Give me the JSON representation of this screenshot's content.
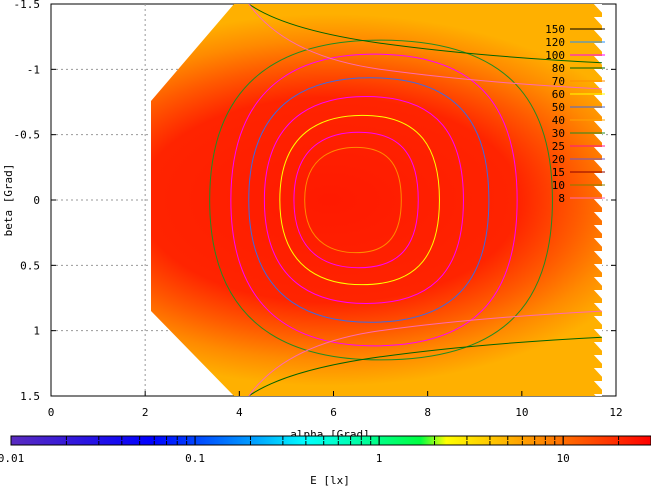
{
  "chart_data": {
    "type": "heatmap",
    "title": "",
    "xlabel": "alpha [Grad]",
    "ylabel": "beta [Grad]",
    "xlim": [
      0,
      12
    ],
    "ylim": [
      -1.5,
      1.5
    ],
    "x_ticks": [
      0,
      2,
      4,
      6,
      8,
      10,
      12
    ],
    "y_ticks": [
      -1.5,
      -1,
      -0.5,
      0,
      0.5,
      1,
      1.5
    ],
    "y_tick_labels": [
      "-1.5",
      "-1",
      "-0.5",
      "0",
      "0.5",
      "1",
      "1.5"
    ],
    "grid": true,
    "colorbar": {
      "label": "E [lx]",
      "scale": "log",
      "range": [
        0.01,
        30
      ],
      "tick_labels": [
        "0.01",
        "0.1",
        "1",
        "10"
      ],
      "tick_values": [
        0.01,
        0.1,
        1,
        10
      ],
      "colors": [
        "#5a2bbf",
        "#0000ff",
        "#00a0ff",
        "#00ffff",
        "#00ff40",
        "#ffff00",
        "#ff8000",
        "#ff0000"
      ]
    },
    "field": {
      "x_range": [
        2.1,
        11.7
      ],
      "peak": {
        "alpha": 6.3,
        "beta": 0.0
      },
      "colors": {
        "high": "#ff2200",
        "low": "#ffb400"
      }
    },
    "contour_legend": [
      {
        "label": "150",
        "color": "#000000",
        "level": 150
      },
      {
        "label": "120",
        "color": "#1e90ff",
        "level": 120
      },
      {
        "label": "100",
        "color": "#ff00ff",
        "level": 100
      },
      {
        "label": "80",
        "color": "#006400",
        "level": 80
      },
      {
        "label": "70",
        "color": "#ff8c00",
        "level": 70
      },
      {
        "label": "60",
        "color": "#ffff00",
        "level": 60
      },
      {
        "label": "50",
        "color": "#4169e1",
        "level": 50
      },
      {
        "label": "40",
        "color": "#ffa500",
        "level": 40
      },
      {
        "label": "30",
        "color": "#228b22",
        "level": 30
      },
      {
        "label": "25",
        "color": "#ff1493",
        "level": 25
      },
      {
        "label": "20",
        "color": "#6a5acd",
        "level": 20
      },
      {
        "label": "15",
        "color": "#8b0000",
        "level": 15
      },
      {
        "label": "10",
        "color": "#808000",
        "level": 10
      },
      {
        "label": "8",
        "color": "#ff69b4",
        "level": 8
      }
    ],
    "contours": [
      {
        "color": "#228b22",
        "ax": 1.45,
        "bx": 1.7,
        "dx": 0.55
      },
      {
        "color": "#ff00ff",
        "ax": 1.2,
        "bx": 1.55,
        "dx": 0.4
      },
      {
        "color": "#4169e1",
        "ax": 1.0,
        "bx": 1.3,
        "dx": 0.3
      },
      {
        "color": "#ff00ff",
        "ax": 0.82,
        "bx": 1.1,
        "dx": 0.2
      },
      {
        "color": "#ffff00",
        "ax": 0.65,
        "bx": 0.9,
        "dx": 0.12
      },
      {
        "color": "#ff00ff",
        "ax": 0.5,
        "bx": 0.72,
        "dx": 0.06
      },
      {
        "color": "#ff8c00",
        "ax": 0.38,
        "bx": 0.56,
        "dx": 0.0
      }
    ]
  }
}
